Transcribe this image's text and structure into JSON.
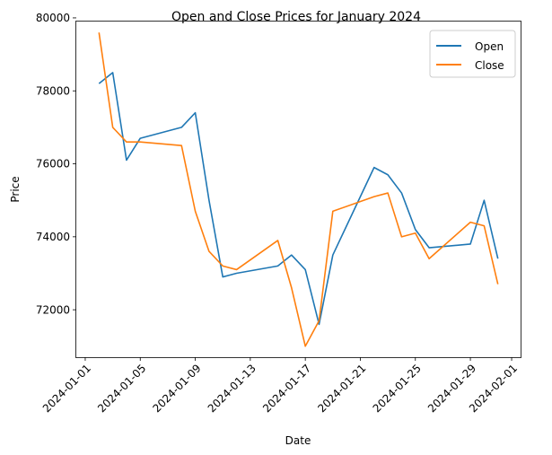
{
  "chart_data": {
    "type": "line",
    "title": "Open and Close Prices for January 2024",
    "xlabel": "Date",
    "ylabel": "Price",
    "x": [
      "2024-01-02",
      "2024-01-03",
      "2024-01-04",
      "2024-01-05",
      "2024-01-08",
      "2024-01-09",
      "2024-01-10",
      "2024-01-11",
      "2024-01-12",
      "2024-01-15",
      "2024-01-16",
      "2024-01-17",
      "2024-01-18",
      "2024-01-19",
      "2024-01-22",
      "2024-01-23",
      "2024-01-24",
      "2024-01-25",
      "2024-01-26",
      "2024-01-29",
      "2024-01-30",
      "2024-01-31"
    ],
    "series": [
      {
        "name": "Open",
        "color": "#1f77b4",
        "values": [
          78200,
          78500,
          76100,
          76700,
          77000,
          77400,
          75000,
          72900,
          73000,
          73200,
          73500,
          73100,
          71600,
          73500,
          75900,
          75700,
          75200,
          74200,
          73700,
          73800,
          75000,
          73400
        ]
      },
      {
        "name": "Close",
        "color": "#ff7f0e",
        "values": [
          79600,
          77000,
          76600,
          76600,
          76500,
          74700,
          73600,
          73200,
          73100,
          73900,
          72600,
          71000,
          71700,
          74700,
          75100,
          75200,
          74000,
          74100,
          73400,
          74400,
          74300,
          72700
        ]
      }
    ],
    "xlim": [
      "2023-12-31T08:24",
      "2024-02-01T15:36"
    ],
    "ylim": [
      70700,
      79900
    ],
    "xticks": [
      "2024-01-01",
      "2024-01-05",
      "2024-01-09",
      "2024-01-13",
      "2024-01-17",
      "2024-01-21",
      "2024-01-25",
      "2024-01-29",
      "2024-02-01"
    ],
    "yticks": [
      72000,
      74000,
      76000,
      78000,
      80000
    ],
    "legend_position": "top-right",
    "grid": false
  }
}
